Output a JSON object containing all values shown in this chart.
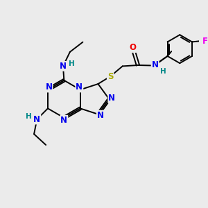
{
  "background_color": "#ebebeb",
  "figsize": [
    3.0,
    3.0
  ],
  "dpi": 100,
  "atom_colors": {
    "N": "#0000ee",
    "O": "#ee0000",
    "S": "#aaaa00",
    "F": "#ee00ee",
    "C": "#000000",
    "H": "#008888"
  },
  "bond_color": "#000000",
  "bond_width": 1.4,
  "font_size_atom": 8.5,
  "font_size_H": 7.5,
  "xlim": [
    0,
    10
  ],
  "ylim": [
    0,
    10
  ]
}
